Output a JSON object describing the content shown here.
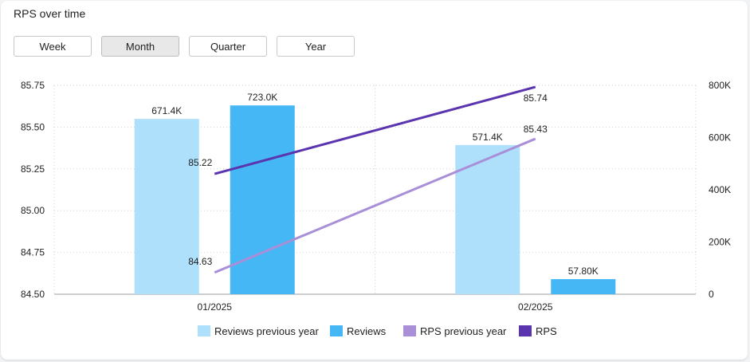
{
  "title": "RPS over time",
  "range_buttons": [
    {
      "label": "Week",
      "active": false
    },
    {
      "label": "Month",
      "active": true
    },
    {
      "label": "Quarter",
      "active": false
    },
    {
      "label": "Year",
      "active": false
    }
  ],
  "colors": {
    "reviews_prev": "#aee0fb",
    "reviews": "#45b7f5",
    "rps_prev": "#a98fd8",
    "rps": "#5b34b0"
  },
  "chart_data": {
    "type": "bar",
    "categories": [
      "01/2025",
      "02/2025"
    ],
    "y_left": {
      "min": 84.5,
      "max": 85.75,
      "ticks": [
        "84.50",
        "84.75",
        "85.00",
        "85.25",
        "85.50",
        "85.75"
      ],
      "values": [
        84.5,
        84.75,
        85.0,
        85.25,
        85.5,
        85.75
      ]
    },
    "y_right": {
      "min": 0,
      "max": 800000,
      "ticks": [
        "0",
        "200K",
        "400K",
        "600K",
        "800K"
      ],
      "values": [
        0,
        200000,
        400000,
        600000,
        800000
      ]
    },
    "grid": true,
    "legend_position": "bottom",
    "series": [
      {
        "name": "Reviews previous year",
        "kind": "bar",
        "axis": "right",
        "color_key": "reviews_prev",
        "values": [
          671400,
          571400
        ],
        "labels": [
          "671.4K",
          "571.4K"
        ]
      },
      {
        "name": "Reviews",
        "kind": "bar",
        "axis": "right",
        "color_key": "reviews",
        "values": [
          723000,
          57800
        ],
        "labels": [
          "723.0K",
          "57.80K"
        ]
      },
      {
        "name": "RPS previous year",
        "kind": "line",
        "axis": "left",
        "color_key": "rps_prev",
        "values": [
          84.63,
          85.43
        ],
        "labels": [
          "84.63",
          "85.43"
        ]
      },
      {
        "name": "RPS",
        "kind": "line",
        "axis": "left",
        "color_key": "rps",
        "values": [
          85.22,
          85.74
        ],
        "labels": [
          "85.22",
          "85.74"
        ]
      }
    ]
  }
}
